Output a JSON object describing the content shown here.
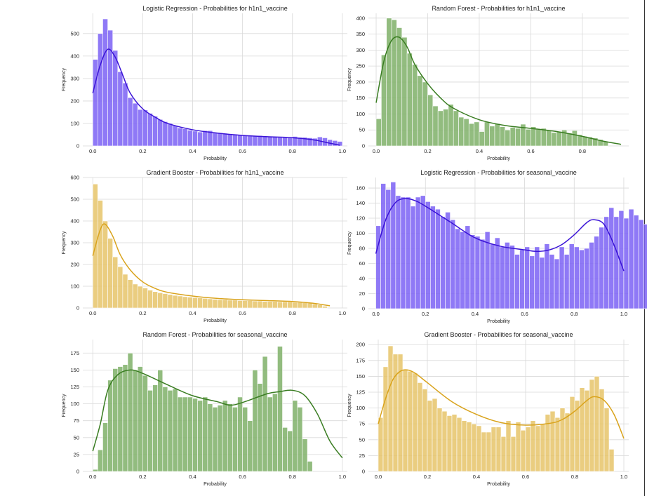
{
  "figure": {
    "background": "#ffffff",
    "grid_color": "#d9d9d9",
    "axis_text_color": "#222222"
  },
  "chart_data": [
    {
      "type": "bar",
      "subtype": "histogram+kde",
      "title": "Logistic Regression - Probabilities for h1n1_vaccine",
      "xlabel": "Probability",
      "ylabel": "Frequency",
      "xlim": [
        -0.04,
        1.02
      ],
      "ylim": [
        0,
        590
      ],
      "xticks": [
        0.0,
        0.2,
        0.4,
        0.6,
        0.8,
        1.0
      ],
      "yticks": [
        0,
        100,
        200,
        300,
        400,
        500
      ],
      "grid": true,
      "bar_color": "#7b61f5",
      "line_color": "#3b14d6",
      "bins": {
        "start": 0.0,
        "width": 0.02,
        "counts": [
          385,
          500,
          565,
          515,
          425,
          330,
          280,
          215,
          190,
          162,
          160,
          145,
          132,
          118,
          108,
          100,
          90,
          80,
          76,
          70,
          66,
          62,
          68,
          68,
          60,
          58,
          56,
          54,
          52,
          50,
          48,
          46,
          44,
          46,
          44,
          42,
          40,
          38,
          40,
          36,
          42,
          38,
          38,
          36,
          34,
          40,
          36,
          28,
          24,
          20
        ]
      },
      "kde": {
        "x": [
          0.0,
          0.03,
          0.06,
          0.09,
          0.12,
          0.15,
          0.2,
          0.25,
          0.3,
          0.4,
          0.5,
          0.6,
          0.7,
          0.78,
          0.85,
          0.9,
          0.95,
          0.99
        ],
        "y": [
          235,
          360,
          430,
          395,
          315,
          235,
          165,
          128,
          100,
          72,
          57,
          47,
          41,
          38,
          32,
          24,
          12,
          3
        ]
      }
    },
    {
      "type": "bar",
      "subtype": "histogram+kde",
      "title": "Random Forest - Probabilities for h1n1_vaccine",
      "xlabel": "Probability",
      "ylabel": "Frequency",
      "xlim": [
        -0.03,
        0.98
      ],
      "ylim": [
        0,
        415
      ],
      "xticks": [
        0.0,
        0.2,
        0.4,
        0.6,
        0.8
      ],
      "yticks": [
        0,
        50,
        100,
        150,
        200,
        250,
        300,
        350,
        400
      ],
      "grid": true,
      "bar_color": "#7fb069",
      "line_color": "#3a7d22",
      "bins": {
        "start": 0.0,
        "width": 0.02,
        "counts": [
          85,
          285,
          400,
          395,
          370,
          340,
          290,
          255,
          220,
          200,
          160,
          125,
          110,
          115,
          130,
          110,
          90,
          85,
          70,
          75,
          45,
          75,
          62,
          70,
          60,
          50,
          58,
          55,
          68,
          52,
          60,
          52,
          55,
          50,
          42,
          45,
          50,
          40,
          48,
          35,
          30,
          28,
          25,
          20,
          14
        ]
      },
      "kde": {
        "x": [
          0.0,
          0.03,
          0.06,
          0.09,
          0.12,
          0.15,
          0.2,
          0.25,
          0.3,
          0.4,
          0.5,
          0.6,
          0.7,
          0.8,
          0.88,
          0.95
        ],
        "y": [
          135,
          265,
          330,
          340,
          310,
          255,
          195,
          150,
          118,
          82,
          64,
          55,
          45,
          30,
          15,
          5
        ]
      }
    },
    {
      "type": "bar",
      "subtype": "histogram+kde",
      "title": "Gradient Booster - Probabilities for h1n1_vaccine",
      "xlabel": "Probability",
      "ylabel": "Frequency",
      "xlim": [
        -0.04,
        1.02
      ],
      "ylim": [
        0,
        600
      ],
      "xticks": [
        0.0,
        0.2,
        0.4,
        0.6,
        0.8,
        1.0
      ],
      "yticks": [
        0,
        100,
        200,
        300,
        400,
        500,
        600
      ],
      "grid": true,
      "bar_color": "#e6c46a",
      "line_color": "#d9a31c",
      "bins": {
        "start": 0.0,
        "width": 0.02,
        "counts": [
          570,
          495,
          400,
          320,
          235,
          190,
          155,
          130,
          110,
          100,
          92,
          82,
          75,
          70,
          66,
          62,
          58,
          55,
          52,
          50,
          48,
          46,
          44,
          42,
          40,
          38,
          38,
          36,
          36,
          34,
          34,
          34,
          32,
          32,
          30,
          30,
          30,
          28,
          28,
          28,
          26,
          26,
          24,
          22,
          18,
          14,
          8
        ]
      },
      "kde": {
        "x": [
          0.0,
          0.03,
          0.05,
          0.08,
          0.11,
          0.15,
          0.2,
          0.25,
          0.3,
          0.4,
          0.5,
          0.6,
          0.7,
          0.8,
          0.88,
          0.95
        ],
        "y": [
          240,
          360,
          385,
          330,
          245,
          175,
          120,
          90,
          72,
          55,
          44,
          38,
          34,
          30,
          22,
          10
        ]
      }
    },
    {
      "type": "bar",
      "subtype": "histogram+kde",
      "title": "Logistic Regression - Probabilities for seasonal_vaccine",
      "xlabel": "Probability",
      "ylabel": "Frequency",
      "xlim": [
        -0.03,
        1.02
      ],
      "ylim": [
        0,
        174
      ],
      "xticks": [
        0.0,
        0.2,
        0.4,
        0.6,
        0.8,
        1.0
      ],
      "yticks": [
        0,
        20,
        40,
        60,
        80,
        100,
        120,
        140,
        160
      ],
      "grid": true,
      "bar_color": "#7b61f5",
      "line_color": "#3b14d6",
      "bins": {
        "start": 0.0,
        "width": 0.02,
        "counts": [
          110,
          166,
          158,
          168,
          150,
          148,
          148,
          136,
          148,
          150,
          142,
          136,
          132,
          122,
          128,
          118,
          106,
          102,
          110,
          98,
          96,
          92,
          102,
          86,
          94,
          82,
          88,
          84,
          72,
          78,
          82,
          70,
          82,
          68,
          86,
          72,
          66,
          82,
          72,
          86,
          82,
          78,
          80,
          88,
          96,
          108,
          122,
          134,
          122,
          130,
          120,
          132,
          124,
          118,
          112,
          132,
          108,
          36
        ]
      },
      "kde": {
        "x": [
          0.0,
          0.04,
          0.08,
          0.12,
          0.16,
          0.2,
          0.3,
          0.4,
          0.5,
          0.6,
          0.65,
          0.7,
          0.75,
          0.8,
          0.85,
          0.88,
          0.92,
          0.96,
          1.0
        ],
        "y": [
          73,
          118,
          141,
          146,
          143,
          136,
          115,
          94,
          83,
          78,
          76,
          78,
          85,
          98,
          114,
          118,
          112,
          85,
          50
        ]
      }
    },
    {
      "type": "bar",
      "subtype": "histogram+kde",
      "title": "Random Forest - Probabilities for seasonal_vaccine",
      "xlabel": "Probability",
      "ylabel": "Frequency",
      "xlim": [
        -0.04,
        1.02
      ],
      "ylim": [
        0,
        195
      ],
      "xticks": [
        0.0,
        0.2,
        0.4,
        0.6,
        0.8,
        1.0
      ],
      "yticks": [
        0,
        25,
        50,
        75,
        100,
        125,
        150,
        175
      ],
      "grid": true,
      "bar_color": "#7fb069",
      "line_color": "#3a7d22",
      "bins": {
        "start": 0.0,
        "width": 0.02,
        "counts": [
          3,
          32,
          72,
          135,
          152,
          155,
          158,
          175,
          150,
          155,
          142,
          120,
          128,
          150,
          125,
          120,
          122,
          110,
          110,
          110,
          108,
          105,
          110,
          100,
          95,
          98,
          105,
          100,
          95,
          110,
          95,
          75,
          150,
          130,
          170,
          110,
          115,
          185,
          65,
          60,
          105,
          95,
          48,
          15
        ]
      },
      "kde": {
        "x": [
          0.0,
          0.03,
          0.06,
          0.1,
          0.15,
          0.2,
          0.3,
          0.4,
          0.5,
          0.55,
          0.6,
          0.7,
          0.75,
          0.8,
          0.85,
          0.9,
          0.95,
          1.0
        ],
        "y": [
          30,
          70,
          120,
          143,
          150,
          145,
          128,
          112,
          103,
          98,
          102,
          115,
          118,
          120,
          112,
          85,
          45,
          20
        ]
      }
    },
    {
      "type": "bar",
      "subtype": "histogram+kde",
      "title": "Gradient Booster - Probabilities for seasonal_vaccine",
      "xlabel": "Probability",
      "ylabel": "Frequency",
      "xlim": [
        -0.04,
        1.02
      ],
      "ylim": [
        0,
        208
      ],
      "xticks": [
        0.0,
        0.2,
        0.4,
        0.6,
        0.8,
        1.0
      ],
      "yticks": [
        0,
        25,
        50,
        75,
        100,
        125,
        150,
        175,
        200
      ],
      "grid": true,
      "bar_color": "#e6c46a",
      "line_color": "#d9a31c",
      "bins": {
        "start": 0.0,
        "width": 0.02,
        "counts": [
          85,
          165,
          198,
          185,
          185,
          160,
          158,
          155,
          140,
          130,
          112,
          115,
          100,
          95,
          88,
          90,
          85,
          80,
          78,
          75,
          72,
          62,
          62,
          70,
          70,
          55,
          80,
          55,
          78,
          65,
          70,
          80,
          72,
          75,
          90,
          95,
          85,
          100,
          92,
          118,
          112,
          132,
          128,
          145,
          150,
          130,
          100,
          35
        ]
      },
      "kde": {
        "x": [
          0.0,
          0.03,
          0.06,
          0.09,
          0.12,
          0.15,
          0.2,
          0.3,
          0.4,
          0.5,
          0.6,
          0.7,
          0.75,
          0.8,
          0.85,
          0.88,
          0.92,
          0.96,
          1.0
        ],
        "y": [
          75,
          115,
          145,
          158,
          160,
          155,
          140,
          110,
          90,
          77,
          73,
          76,
          82,
          95,
          112,
          118,
          112,
          90,
          52
        ]
      }
    }
  ]
}
